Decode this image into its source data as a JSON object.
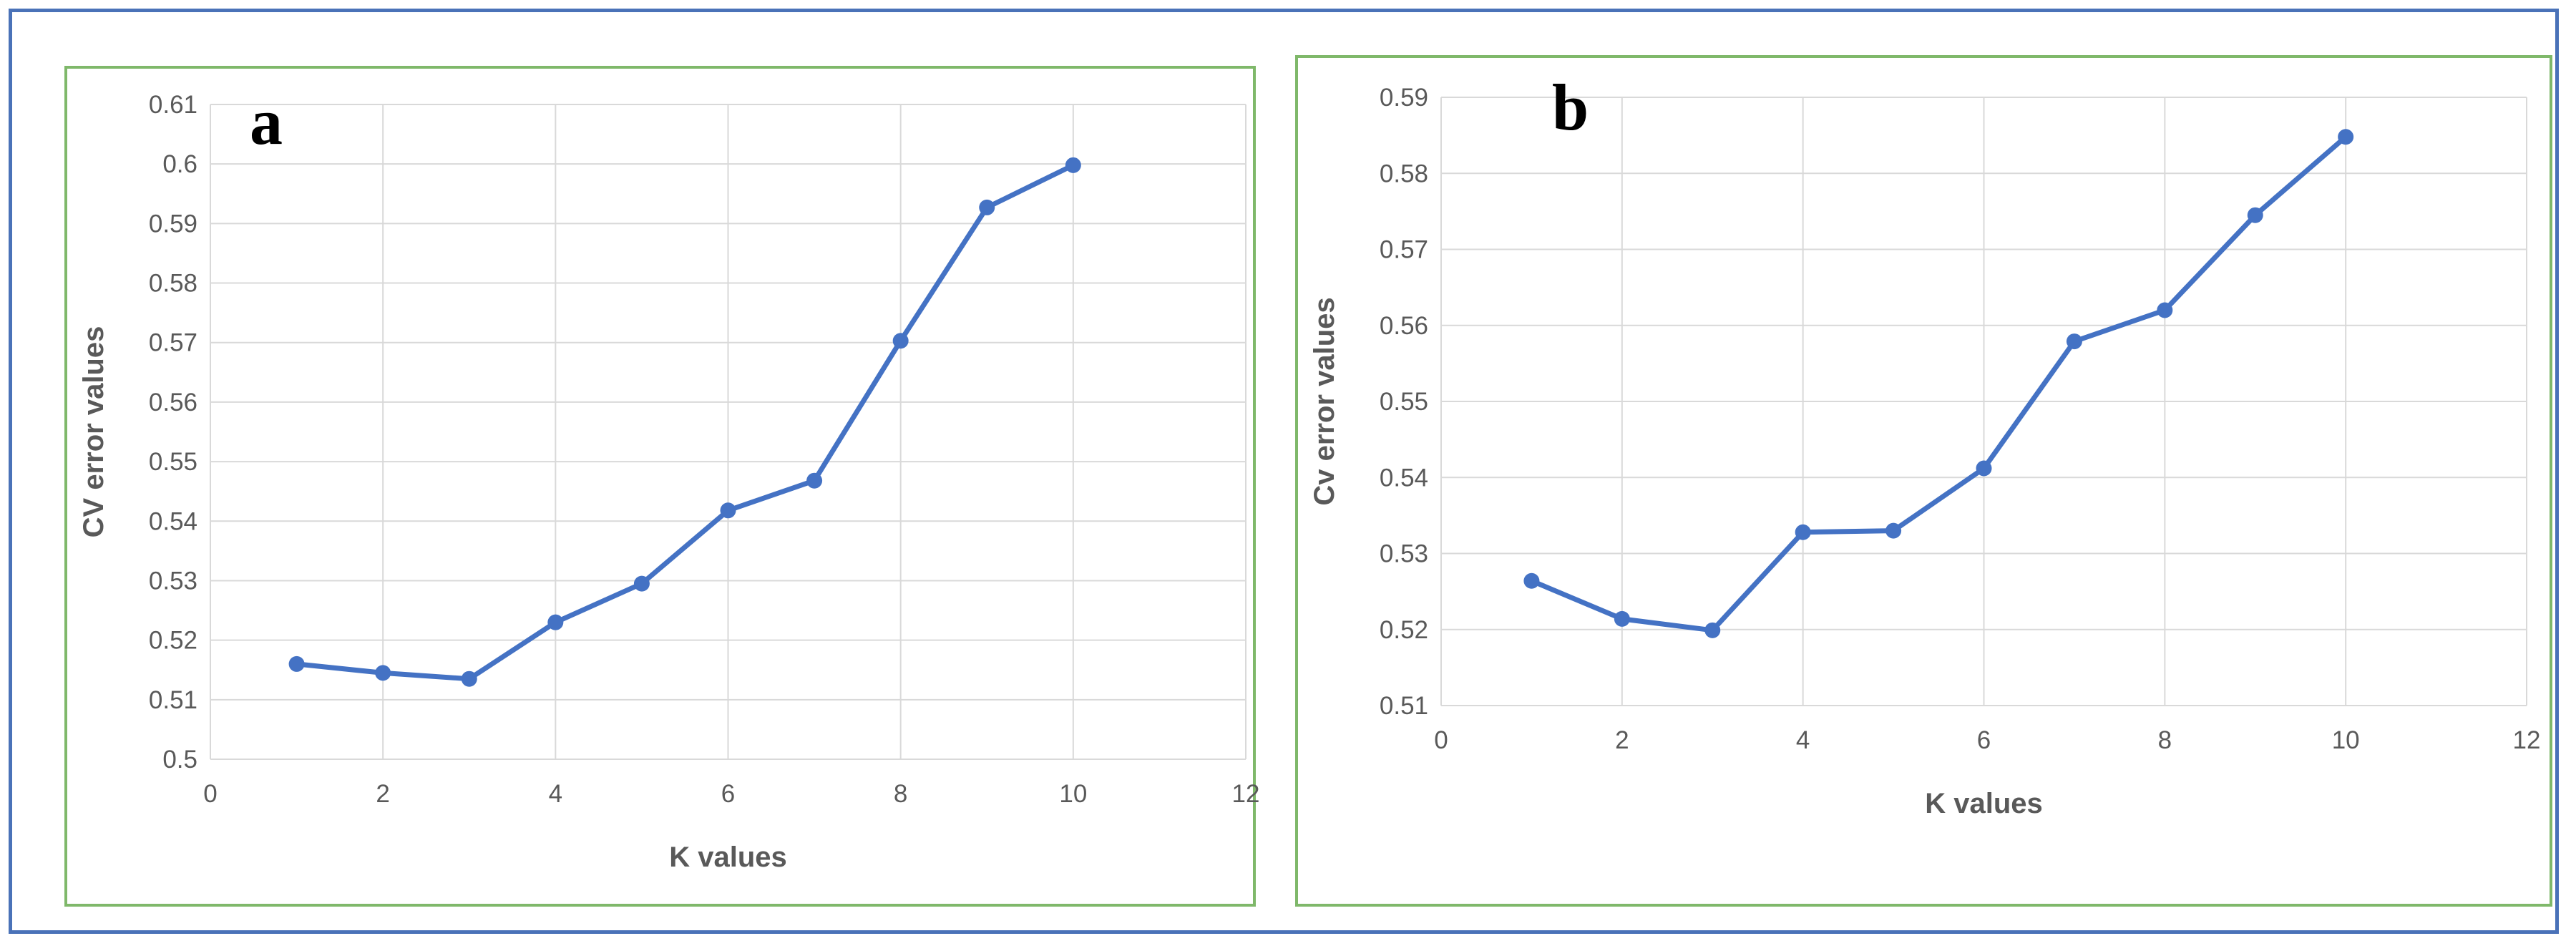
{
  "chart_data": [
    {
      "type": "line",
      "panel_label": "a",
      "xlabel": "K values",
      "ylabel": "CV error values",
      "xlim": [
        0,
        12
      ],
      "ylim": [
        0.5,
        0.61
      ],
      "xticks": [
        0,
        2,
        4,
        6,
        8,
        10,
        12
      ],
      "yticks": [
        0.5,
        0.51,
        0.52,
        0.53,
        0.54,
        0.55,
        0.56,
        0.57,
        0.58,
        0.59,
        0.6,
        0.61
      ],
      "grid": true,
      "series": [
        {
          "x": [
            1,
            2,
            3,
            4,
            5,
            6,
            7,
            8,
            9,
            10
          ],
          "y": [
            0.516,
            0.5145,
            0.5135,
            0.523,
            0.5295,
            0.5418,
            0.5468,
            0.5703,
            0.5927,
            0.5998
          ]
        }
      ]
    },
    {
      "type": "line",
      "panel_label": "b",
      "xlabel": "K values",
      "ylabel": "Cv error values",
      "xlim": [
        0,
        12
      ],
      "ylim": [
        0.51,
        0.59
      ],
      "xticks": [
        0,
        2,
        4,
        6,
        8,
        10,
        12
      ],
      "yticks": [
        0.51,
        0.52,
        0.53,
        0.54,
        0.55,
        0.56,
        0.57,
        0.58,
        0.59
      ],
      "grid": true,
      "series": [
        {
          "x": [
            1,
            2,
            3,
            4,
            5,
            6,
            7,
            8,
            9,
            10
          ],
          "y": [
            0.5264,
            0.5214,
            0.5199,
            0.5328,
            0.533,
            0.5412,
            0.5579,
            0.562,
            0.5745,
            0.5848
          ]
        }
      ]
    }
  ],
  "colors": {
    "line": "#4472c4",
    "grid": "#d9d9d9",
    "frame_outer": "#4a72b8",
    "frame_panel": "#7fb86a",
    "text": "#595959"
  }
}
